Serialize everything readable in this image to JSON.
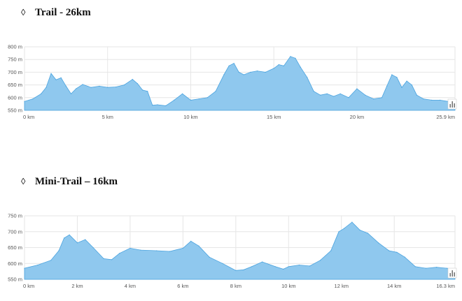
{
  "sections": [
    {
      "bullet": "◊",
      "title": "Trail - 26km"
    },
    {
      "bullet": "◊",
      "title": "Mini-Trail – 16km"
    }
  ],
  "colors": {
    "fill": "#8fc8ee",
    "line": "#4aa3df",
    "grid": "#e6e6e6"
  },
  "chart_data": [
    {
      "type": "area",
      "title": "Trail - 26km",
      "xlabel": "",
      "ylabel": "",
      "xlim": [
        0,
        25.9
      ],
      "ylim": [
        550,
        800
      ],
      "y_ticks": [
        "550 m",
        "600 m",
        "650 m",
        "700 m",
        "750 m",
        "800 m"
      ],
      "x_ticks": [
        {
          "value": 0,
          "label": "0 km"
        },
        {
          "value": 5,
          "label": "5 km"
        },
        {
          "value": 10,
          "label": "10 km"
        },
        {
          "value": 15,
          "label": "15 km"
        },
        {
          "value": 20,
          "label": "20 km"
        },
        {
          "value": 25.9,
          "label": "25.9 km"
        }
      ],
      "grid": true,
      "x": [
        0,
        0.5,
        1.0,
        1.3,
        1.6,
        1.9,
        2.2,
        2.5,
        2.8,
        3.1,
        3.5,
        4.0,
        4.5,
        5.0,
        5.5,
        6.0,
        6.5,
        6.8,
        7.1,
        7.4,
        7.7,
        8.0,
        8.5,
        9.0,
        9.5,
        10.0,
        10.5,
        11.0,
        11.5,
        12.0,
        12.3,
        12.6,
        12.9,
        13.2,
        13.6,
        14.0,
        14.5,
        15.0,
        15.3,
        15.6,
        16.0,
        16.3,
        16.6,
        17.0,
        17.4,
        17.8,
        18.2,
        18.6,
        19.0,
        19.5,
        20.0,
        20.5,
        21.0,
        21.5,
        21.8,
        22.1,
        22.4,
        22.7,
        23.0,
        23.3,
        23.6,
        24.0,
        24.5,
        25.0,
        25.5,
        25.9
      ],
      "values": [
        585,
        595,
        615,
        640,
        695,
        670,
        678,
        645,
        615,
        635,
        652,
        640,
        645,
        640,
        642,
        650,
        672,
        655,
        630,
        625,
        570,
        572,
        568,
        590,
        615,
        590,
        595,
        600,
        625,
        690,
        725,
        735,
        700,
        690,
        700,
        705,
        700,
        715,
        730,
        725,
        762,
        755,
        720,
        680,
        625,
        610,
        615,
        605,
        615,
        600,
        635,
        610,
        595,
        600,
        645,
        690,
        680,
        640,
        665,
        650,
        610,
        595,
        590,
        590,
        585,
        580
      ]
    },
    {
      "type": "area",
      "title": "Mini-Trail – 16km",
      "xlabel": "",
      "ylabel": "",
      "xlim": [
        0,
        16.3
      ],
      "ylim": [
        550,
        750
      ],
      "y_ticks": [
        "550 m",
        "600 m",
        "650 m",
        "700 m",
        "750 m"
      ],
      "x_ticks": [
        {
          "value": 0,
          "label": "0 km"
        },
        {
          "value": 2,
          "label": "2 km"
        },
        {
          "value": 4,
          "label": "4 km"
        },
        {
          "value": 6,
          "label": "6 km"
        },
        {
          "value": 8,
          "label": "8 km"
        },
        {
          "value": 10,
          "label": "10 km"
        },
        {
          "value": 12,
          "label": "12 km"
        },
        {
          "value": 14,
          "label": "14 km"
        },
        {
          "value": 16.3,
          "label": "16.3 km"
        }
      ],
      "grid": true,
      "x": [
        0,
        0.5,
        1.0,
        1.3,
        1.5,
        1.7,
        2.0,
        2.3,
        2.6,
        3.0,
        3.3,
        3.6,
        4.0,
        4.4,
        5.0,
        5.5,
        6.0,
        6.3,
        6.6,
        7.0,
        7.5,
        8.0,
        8.3,
        8.6,
        9.0,
        9.5,
        9.8,
        10.0,
        10.4,
        10.8,
        11.2,
        11.6,
        11.9,
        12.1,
        12.4,
        12.7,
        13.0,
        13.4,
        13.8,
        14.1,
        14.4,
        14.8,
        15.2,
        15.6,
        16.0,
        16.3
      ],
      "values": [
        585,
        595,
        610,
        640,
        680,
        690,
        665,
        675,
        650,
        615,
        612,
        632,
        648,
        642,
        640,
        638,
        648,
        670,
        655,
        620,
        600,
        578,
        580,
        590,
        605,
        590,
        582,
        590,
        595,
        592,
        610,
        640,
        700,
        710,
        730,
        705,
        695,
        665,
        640,
        635,
        620,
        590,
        585,
        588,
        585,
        580
      ]
    }
  ]
}
